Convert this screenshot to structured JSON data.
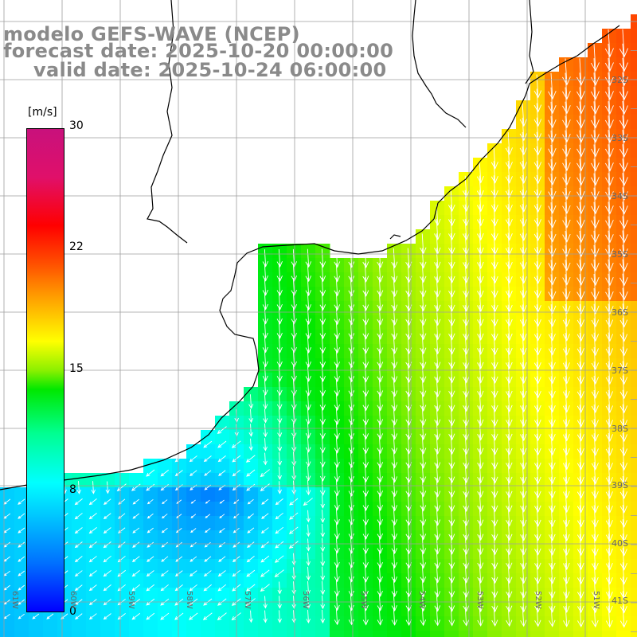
{
  "title": {
    "line1": "modelo GEFS-WAVE (NCEP)",
    "line2": "forecast date: 2025-10-20 00:00:00",
    "line3": "valid date: 2025-10-24 06:00:00"
  },
  "colorbar": {
    "unit": "[m/s]",
    "ticks": [
      "30",
      "22",
      "15",
      "8",
      "0"
    ],
    "colors": [
      "#0000ff",
      "#00c8ff",
      "#00ffff",
      "#00e800",
      "#ffff00",
      "#ff0000",
      "#c8117c"
    ]
  },
  "lat_labels": [
    "32S",
    "33S",
    "34S",
    "35S",
    "36S",
    "37S",
    "38S",
    "39S",
    "40S",
    "41S"
  ],
  "lon_labels": [
    "61W",
    "60W",
    "59W",
    "58W",
    "57W",
    "56W",
    "55W",
    "54W",
    "53W",
    "52W",
    "51W"
  ],
  "field": {
    "variable": "wind speed",
    "units": "m/s",
    "range": [
      0,
      30
    ],
    "wind_direction": "southward"
  },
  "colors": {
    "land": "#ffffff",
    "grid": "#9e9e9e",
    "coast": "#000000",
    "vectors": "#ffffff",
    "title": "#8a8a8a"
  }
}
